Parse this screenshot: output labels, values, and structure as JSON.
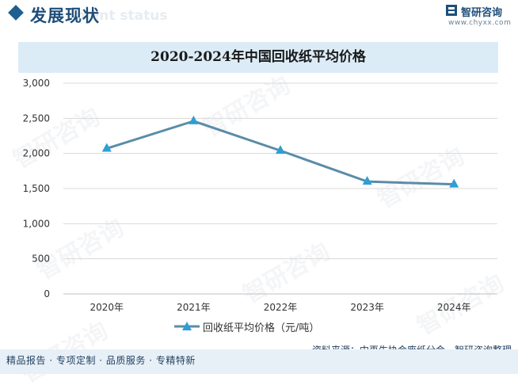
{
  "header": {
    "section_title": "发展现状",
    "section_subtitle": "ment status",
    "logo_name": "智研咨询",
    "logo_url": "www.chyxx.com"
  },
  "watermark": "智研咨询",
  "footer": {
    "left": "精品报告 · 专项定制 · 品质服务 · 专精特新",
    "right": "资料来源：中再生协会废纸分会、智研咨询整理"
  },
  "colors": {
    "line": "#5b8ca8",
    "marker": "#2d9fd5",
    "grid": "#d9d9d9",
    "title_band": "#dcecf7"
  },
  "chart_data": {
    "type": "line",
    "title": "2020-2024年中国回收纸平均价格",
    "categories": [
      "2020年",
      "2021年",
      "2022年",
      "2023年",
      "2024年"
    ],
    "series": [
      {
        "name": "回收纸平均价格（元/吨）",
        "values": [
          2070,
          2460,
          2040,
          1600,
          1560
        ]
      }
    ],
    "ylim": [
      0,
      3000
    ],
    "yticks": [
      0,
      500,
      1000,
      1500,
      2000,
      2500,
      3000
    ],
    "ytick_labels": [
      "0",
      "500",
      "1,000",
      "1,500",
      "2,000",
      "2,500",
      "3,000"
    ],
    "marker": "triangle",
    "grid": true,
    "legend": "bottom"
  }
}
